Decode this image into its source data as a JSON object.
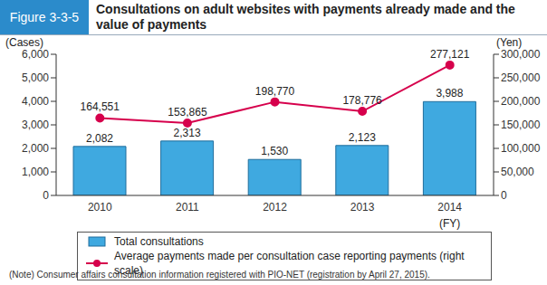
{
  "chart_data": {
    "type": "bar",
    "figure_label": "Figure 3-3-5",
    "title": "Consultations on adult websites with payments already made and the value of payments",
    "x_label": "(FY)",
    "y_label": "(Cases)",
    "y2_label": "(Yen)",
    "note": "(Note)  Consumer affairs consultation information registered with PIO-NET (registration by April 27, 2015).",
    "categories": [
      "2010",
      "2011",
      "2012",
      "2013",
      "2014"
    ],
    "series": [
      {
        "name": "Total consultations",
        "type": "bar",
        "color": "#3fa9e0",
        "values": [
          2082,
          2313,
          1530,
          2123,
          3988
        ],
        "value_labels": [
          "2,082",
          "2,313",
          "1,530",
          "2,123",
          "3,988"
        ]
      },
      {
        "name": "Average payments made per consultation case reporting payments (right scale)",
        "type": "line",
        "axis": "y2",
        "color": "#d6004c",
        "marker": "circle",
        "values": [
          164551,
          153865,
          198770,
          178776,
          277121
        ],
        "value_labels": [
          "164,551",
          "153,865",
          "198,770",
          "178,776",
          "277,121"
        ]
      }
    ],
    "ylim": [
      0,
      6000
    ],
    "yticks": [
      0,
      {
        "value": 1000,
        "label": "1,000"
      },
      {
        "value": 2000,
        "label": "2,000"
      },
      {
        "value": 3000,
        "label": "3,000"
      },
      {
        "value": 4000,
        "label": "4,000"
      },
      {
        "value": 5000,
        "label": "5,000"
      },
      {
        "value": 6000,
        "label": "6,000"
      }
    ],
    "y2lim": [
      0,
      300000
    ],
    "y2ticks": [
      0,
      {
        "value": 50000,
        "label": "50,000"
      },
      {
        "value": 100000,
        "label": "100,000"
      },
      {
        "value": 150000,
        "label": "150,000"
      },
      {
        "value": 200000,
        "label": "200,000"
      },
      {
        "value": 250000,
        "label": "250,000"
      },
      {
        "value": 300000,
        "label": "300,000"
      }
    ],
    "data_labels": true,
    "legend": "bottom",
    "grid": false
  }
}
